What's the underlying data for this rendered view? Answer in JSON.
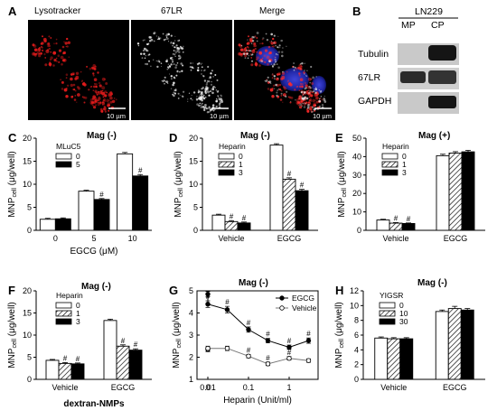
{
  "micro": {
    "label": "A",
    "panels": [
      "Lysotracker",
      "67LR",
      "Merge"
    ],
    "scale": "10 µm"
  },
  "blot": {
    "label": "B",
    "cell_line": "LN229",
    "columns": [
      "MP",
      "CP"
    ],
    "rows": [
      "Tubulin",
      "67LR",
      "GAPDH"
    ]
  },
  "shared": {
    "y_label_main": "MNP",
    "y_label_sub": "cell",
    "y_label_unit": " (μg/well)",
    "hash": "#"
  },
  "chart_data": [
    {
      "id": "C",
      "type": "bar",
      "title": "Mag (-)",
      "legend_title": "MLuC5",
      "legend_entries": [
        "0",
        "5"
      ],
      "categories": [
        "0",
        "5",
        "10"
      ],
      "xlabel": "EGCG (μM)",
      "ylim": [
        0,
        20
      ],
      "yticks": [
        0,
        5,
        10,
        15,
        20
      ],
      "series": [
        {
          "label": "0",
          "fill": "white",
          "values": [
            2.4,
            8.5,
            16.6
          ],
          "err": [
            0.2,
            0.2,
            0.3
          ]
        },
        {
          "label": "5",
          "fill": "black",
          "values": [
            2.5,
            6.7,
            11.8
          ],
          "err": [
            0.2,
            0.2,
            0.3
          ]
        }
      ],
      "marks": [
        {
          "group": 1,
          "series": 1
        },
        {
          "group": 2,
          "series": 1
        }
      ]
    },
    {
      "id": "D",
      "type": "bar",
      "title": "Mag (-)",
      "legend_title": "Heparin",
      "legend_entries": [
        "0",
        "1",
        "3"
      ],
      "categories": [
        "Vehicle",
        "EGCG"
      ],
      "xlabel": "",
      "ylim": [
        0,
        20
      ],
      "yticks": [
        0,
        5,
        10,
        15,
        20
      ],
      "series": [
        {
          "label": "0",
          "fill": "white",
          "values": [
            3.3,
            18.5
          ],
          "err": [
            0.2,
            0.3
          ]
        },
        {
          "label": "1",
          "fill": "hatch",
          "values": [
            1.9,
            11.1
          ],
          "err": [
            0.2,
            0.3
          ]
        },
        {
          "label": "3",
          "fill": "black",
          "values": [
            1.6,
            8.6
          ],
          "err": [
            0.2,
            0.3
          ]
        }
      ],
      "marks": [
        {
          "group": 0,
          "series": 1
        },
        {
          "group": 0,
          "series": 2
        },
        {
          "group": 1,
          "series": 1
        },
        {
          "group": 1,
          "series": 2
        }
      ]
    },
    {
      "id": "E",
      "type": "bar",
      "title": "Mag (+)",
      "legend_title": "Heparin",
      "legend_entries": [
        "0",
        "1",
        "3"
      ],
      "categories": [
        "Vehicle",
        "EGCG"
      ],
      "xlabel": "",
      "ylim": [
        0,
        50
      ],
      "yticks": [
        0,
        10,
        20,
        30,
        40,
        50
      ],
      "series": [
        {
          "label": "0",
          "fill": "white",
          "values": [
            5.6,
            40.5
          ],
          "err": [
            0.4,
            0.8
          ]
        },
        {
          "label": "1",
          "fill": "hatch",
          "values": [
            3.9,
            41.9
          ],
          "err": [
            0.3,
            0.8
          ]
        },
        {
          "label": "3",
          "fill": "black",
          "values": [
            3.7,
            42.6
          ],
          "err": [
            0.3,
            0.8
          ]
        }
      ],
      "marks": [
        {
          "group": 0,
          "series": 1
        },
        {
          "group": 0,
          "series": 2
        }
      ]
    },
    {
      "id": "F",
      "type": "bar",
      "title": "Mag (-)",
      "legend_title": "Heparin",
      "legend_entries": [
        "0",
        "1",
        "3"
      ],
      "categories": [
        "Vehicle",
        "EGCG"
      ],
      "xlabel": "dextran-NMPs",
      "ylim": [
        0,
        20
      ],
      "yticks": [
        0,
        5,
        10,
        15,
        20
      ],
      "series": [
        {
          "label": "0",
          "fill": "white",
          "values": [
            4.3,
            13.3
          ],
          "err": [
            0.2,
            0.3
          ]
        },
        {
          "label": "1",
          "fill": "hatch",
          "values": [
            3.6,
            7.5
          ],
          "err": [
            0.2,
            0.3
          ]
        },
        {
          "label": "3",
          "fill": "black",
          "values": [
            3.5,
            6.6
          ],
          "err": [
            0.2,
            0.3
          ]
        }
      ],
      "marks": [
        {
          "group": 0,
          "series": 1
        },
        {
          "group": 0,
          "series": 2
        },
        {
          "group": 1,
          "series": 1
        },
        {
          "group": 1,
          "series": 2
        }
      ]
    },
    {
      "id": "G",
      "type": "line",
      "title": "Mag (-)",
      "xlabel": "Heparin (Unit/ml)",
      "ylim": [
        1,
        5
      ],
      "yticks": [
        1,
        2,
        3,
        4,
        5
      ],
      "xtick_labels": [
        "0",
        "0.01",
        "0.1",
        "1"
      ],
      "x": [
        0,
        0.01,
        0.03,
        0.1,
        0.3,
        1,
        3
      ],
      "series": [
        {
          "name": "EGCG",
          "marker": "filled",
          "values": [
            4.85,
            4.4,
            4.15,
            3.25,
            2.75,
            2.45,
            2.75
          ],
          "err": [
            0.12,
            0.15,
            0.15,
            0.12,
            0.1,
            0.1,
            0.12
          ],
          "marks": [
            1,
            2,
            3,
            4,
            5,
            6
          ]
        },
        {
          "name": "Vehicle",
          "marker": "open",
          "values": [
            2.35,
            2.4,
            2.4,
            2.05,
            1.7,
            1.95,
            1.85
          ],
          "err": [
            0.1,
            0.1,
            0.1,
            0.08,
            0.08,
            0.08,
            0.08
          ],
          "marks": [
            3,
            4,
            5
          ]
        }
      ]
    },
    {
      "id": "H",
      "type": "bar",
      "title": "Mag (-)",
      "legend_title": "YIGSR",
      "legend_entries": [
        "0",
        "10",
        "30"
      ],
      "categories": [
        "Vehicle",
        "EGCG"
      ],
      "xlabel": "",
      "ylim": [
        0,
        12
      ],
      "yticks": [
        0,
        2,
        4,
        6,
        8,
        10,
        12
      ],
      "series": [
        {
          "label": "0",
          "fill": "white",
          "values": [
            5.6,
            9.2
          ],
          "err": [
            0.15,
            0.2
          ]
        },
        {
          "label": "10",
          "fill": "hatch",
          "values": [
            5.5,
            9.6
          ],
          "err": [
            0.15,
            0.3
          ]
        },
        {
          "label": "30",
          "fill": "black",
          "values": [
            5.5,
            9.4
          ],
          "err": [
            0.15,
            0.2
          ]
        }
      ],
      "marks": []
    }
  ]
}
